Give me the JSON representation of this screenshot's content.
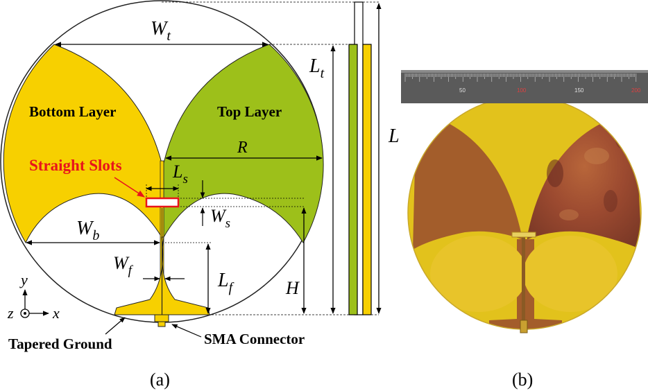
{
  "panel_a": {
    "labels": {
      "bottom_layer": "Bottom Layer",
      "top_layer": "Top Layer",
      "straight_slots": "Straight Slots",
      "tapered_ground": "Tapered Ground",
      "sma_connector": "SMA Connector"
    },
    "dimensions": {
      "wt": "W",
      "wt_sub": "t",
      "lt": "L",
      "lt_sub": "t",
      "l": "L",
      "r": "R",
      "ls": "L",
      "ls_sub": "s",
      "ws": "W",
      "ws_sub": "s",
      "wb": "W",
      "wb_sub": "b",
      "wf": "W",
      "wf_sub": "f",
      "lf": "L",
      "lf_sub": "f",
      "h": "H"
    },
    "axes": {
      "y": "y",
      "z": "z",
      "x": "x"
    },
    "caption": "(a)"
  },
  "panel_b": {
    "ruler_ticks": [
      "50",
      "100",
      "150",
      "200"
    ],
    "caption": "(b)"
  },
  "colors": {
    "bottom_layer": "#f7d000",
    "top_layer": "#9dc01a",
    "slot_outline": "#e8141b",
    "photo_substrate": "#e2c21c",
    "photo_copper_bottom": "#a35d2b",
    "photo_copper_top": "#9c4a30"
  }
}
